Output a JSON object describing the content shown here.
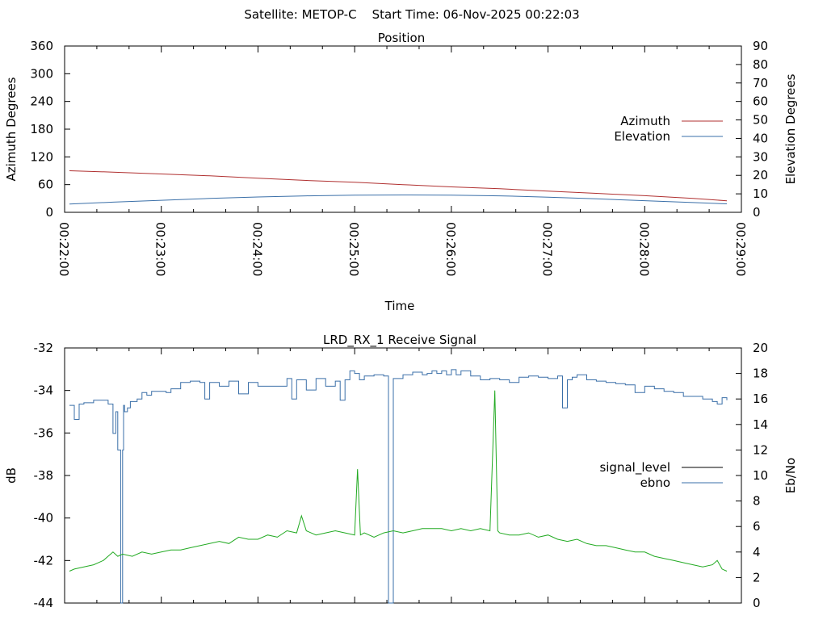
{
  "header": {
    "text": "Satellite: METOP-C    Start Time: 06-Nov-2025 00:22:03"
  },
  "chart_data": [
    {
      "type": "line",
      "title": "Position",
      "xlabel": "Time",
      "ylabel": "Azimuth Degrees",
      "y2label": "Elevation Degrees",
      "x_ticks": [
        "00:22:00",
        "00:23:00",
        "00:24:00",
        "00:25:00",
        "00:26:00",
        "00:27:00",
        "00:28:00",
        "00:29:00"
      ],
      "xlim": [
        0,
        7
      ],
      "ylim": [
        0,
        360
      ],
      "y_ticks": [
        0,
        60,
        120,
        180,
        240,
        300,
        360
      ],
      "y2lim": [
        0,
        90
      ],
      "y2_ticks": [
        0,
        10,
        20,
        30,
        40,
        50,
        60,
        70,
        80,
        90
      ],
      "legend_position": "right",
      "series": [
        {
          "name": "Azimuth",
          "axis": "y",
          "color": "#b03030",
          "x": [
            0.05,
            0.5,
            1,
            1.5,
            2,
            2.5,
            3,
            3.5,
            4,
            4.5,
            5,
            5.5,
            6,
            6.5,
            6.85
          ],
          "y": [
            90,
            87,
            83,
            79,
            74,
            69,
            65,
            60,
            55,
            51,
            46,
            41,
            36,
            30,
            25
          ]
        },
        {
          "name": "Elevation",
          "axis": "y2",
          "color": "#3a6fa8",
          "x": [
            0.05,
            0.5,
            1,
            1.5,
            2,
            2.5,
            3,
            3.5,
            4,
            4.5,
            5,
            5.5,
            6,
            6.5,
            6.85
          ],
          "y": [
            4.5,
            5.5,
            6.5,
            7.5,
            8.3,
            8.9,
            9.3,
            9.4,
            9.3,
            8.9,
            8.2,
            7.3,
            6.3,
            5.3,
            4.6
          ]
        }
      ]
    },
    {
      "type": "line",
      "title": "LRD_RX_1 Receive Signal",
      "xlabel": "",
      "ylabel": "dB",
      "y2label": "Eb/No",
      "xlim": [
        0,
        7
      ],
      "ylim": [
        -44,
        -32
      ],
      "y_ticks": [
        -44,
        -42,
        -40,
        -38,
        -36,
        -34,
        -32
      ],
      "y2lim": [
        0,
        20
      ],
      "y2_ticks": [
        0,
        2,
        4,
        6,
        8,
        10,
        12,
        14,
        16,
        18,
        20
      ],
      "legend_position": "right",
      "series": [
        {
          "name": "signal_level",
          "axis": "y",
          "color": "#000000",
          "x": [],
          "y": []
        },
        {
          "name": "ebno",
          "axis": "y2",
          "color": "#3a6fa8",
          "x": [
            0.05,
            0.08,
            0.1,
            0.13,
            0.15,
            0.2,
            0.3,
            0.35,
            0.45,
            0.5,
            0.52,
            0.53,
            0.55,
            0.58,
            0.6,
            0.61,
            0.62,
            0.63,
            0.65,
            0.68,
            0.7,
            0.75,
            0.8,
            0.85,
            0.9,
            1.0,
            1.05,
            1.1,
            1.2,
            1.3,
            1.4,
            1.45,
            1.5,
            1.6,
            1.7,
            1.8,
            1.9,
            2.0,
            2.3,
            2.35,
            2.4,
            2.5,
            2.6,
            2.7,
            2.8,
            2.85,
            2.9,
            2.95,
            3.0,
            3.05,
            3.1,
            3.2,
            3.3,
            3.35,
            3.4,
            3.5,
            3.6,
            3.7,
            3.75,
            3.8,
            3.85,
            3.9,
            3.95,
            4.0,
            4.05,
            4.1,
            4.2,
            4.3,
            4.4,
            4.5,
            4.6,
            4.7,
            4.8,
            4.9,
            5.0,
            5.1,
            5.15,
            5.2,
            5.25,
            5.3,
            5.4,
            5.5,
            5.6,
            5.7,
            5.8,
            5.9,
            6.0,
            6.1,
            6.2,
            6.3,
            6.4,
            6.5,
            6.6,
            6.7,
            6.75,
            6.8,
            6.85
          ],
          "y": [
            15.5,
            15.5,
            14.4,
            14.4,
            15.6,
            15.7,
            15.9,
            15.9,
            15.6,
            13.3,
            13.3,
            15.0,
            12.0,
            0.0,
            12.0,
            15.5,
            15.0,
            15.0,
            15.3,
            15.8,
            15.8,
            16.0,
            16.5,
            16.3,
            16.6,
            16.6,
            16.5,
            16.8,
            17.3,
            17.4,
            17.3,
            16.0,
            17.3,
            17.0,
            17.4,
            16.4,
            17.3,
            17.0,
            17.6,
            16.0,
            17.5,
            16.7,
            17.6,
            17.0,
            17.4,
            15.9,
            17.5,
            18.2,
            18.0,
            17.5,
            17.8,
            17.9,
            17.8,
            0.0,
            17.6,
            17.9,
            18.1,
            17.9,
            18.0,
            18.2,
            18.0,
            18.2,
            17.9,
            18.3,
            17.9,
            18.2,
            17.8,
            17.5,
            17.6,
            17.5,
            17.3,
            17.7,
            17.8,
            17.7,
            17.6,
            17.8,
            15.3,
            17.5,
            17.7,
            17.9,
            17.5,
            17.4,
            17.3,
            17.2,
            17.1,
            16.5,
            17.0,
            16.8,
            16.6,
            16.5,
            16.2,
            16.2,
            16.0,
            15.8,
            15.6,
            16.1,
            15.9
          ]
        },
        {
          "name": "",
          "axis": "y",
          "color": "#22aa22",
          "x": [
            0.05,
            0.1,
            0.2,
            0.3,
            0.4,
            0.5,
            0.55,
            0.6,
            0.7,
            0.8,
            0.9,
            1.0,
            1.1,
            1.2,
            1.3,
            1.4,
            1.5,
            1.6,
            1.7,
            1.8,
            1.9,
            2.0,
            2.1,
            2.2,
            2.3,
            2.4,
            2.45,
            2.5,
            2.6,
            2.7,
            2.8,
            2.9,
            3.0,
            3.03,
            3.06,
            3.1,
            3.2,
            3.3,
            3.4,
            3.5,
            3.6,
            3.7,
            3.8,
            3.9,
            4.0,
            4.1,
            4.2,
            4.3,
            4.4,
            4.45,
            4.48,
            4.5,
            4.6,
            4.7,
            4.8,
            4.9,
            5.0,
            5.1,
            5.2,
            5.3,
            5.4,
            5.5,
            5.6,
            5.7,
            5.8,
            5.9,
            6.0,
            6.1,
            6.2,
            6.3,
            6.4,
            6.5,
            6.6,
            6.7,
            6.75,
            6.8,
            6.85
          ],
          "y": [
            -42.5,
            -42.4,
            -42.3,
            -42.2,
            -42.0,
            -41.6,
            -41.8,
            -41.7,
            -41.8,
            -41.6,
            -41.7,
            -41.6,
            -41.5,
            -41.5,
            -41.4,
            -41.3,
            -41.2,
            -41.1,
            -41.2,
            -40.9,
            -41.0,
            -41.0,
            -40.8,
            -40.9,
            -40.6,
            -40.7,
            -39.9,
            -40.6,
            -40.8,
            -40.7,
            -40.6,
            -40.7,
            -40.8,
            -37.7,
            -40.8,
            -40.7,
            -40.9,
            -40.7,
            -40.6,
            -40.7,
            -40.6,
            -40.5,
            -40.5,
            -40.5,
            -40.6,
            -40.5,
            -40.6,
            -40.5,
            -40.6,
            -34.0,
            -40.6,
            -40.7,
            -40.8,
            -40.8,
            -40.7,
            -40.9,
            -40.8,
            -41.0,
            -41.1,
            -41.0,
            -41.2,
            -41.3,
            -41.3,
            -41.4,
            -41.5,
            -41.6,
            -41.6,
            -41.8,
            -41.9,
            -42.0,
            -42.1,
            -42.2,
            -42.3,
            -42.2,
            -42.0,
            -42.4,
            -42.5
          ]
        }
      ]
    }
  ]
}
